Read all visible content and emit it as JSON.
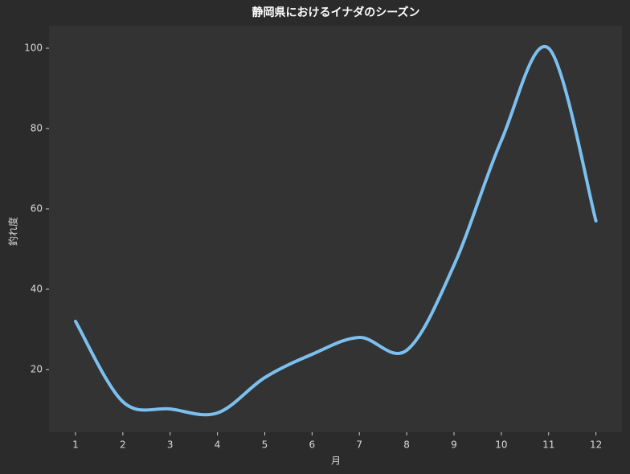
{
  "chart_data": {
    "type": "line",
    "title": "静岡県におけるイナダのシーズン",
    "x_label": "月",
    "y_label": "釣れ度",
    "x": [
      1,
      2,
      3,
      4,
      5,
      6,
      7,
      8,
      9,
      10,
      11,
      12
    ],
    "values": [
      32,
      12,
      10.2,
      9.2,
      18,
      23.8,
      28,
      24.8,
      46,
      77,
      100,
      57
    ],
    "color": "#7cc0f0",
    "xlim": [
      0.44,
      12.55
    ],
    "xticks": [
      1,
      2,
      3,
      4,
      5,
      6,
      7,
      8,
      9,
      10,
      11,
      12
    ],
    "ylim": [
      4.4,
      105.6
    ],
    "yticks": [
      20,
      40,
      60,
      80,
      100
    ],
    "grid": false,
    "smooth": true
  }
}
